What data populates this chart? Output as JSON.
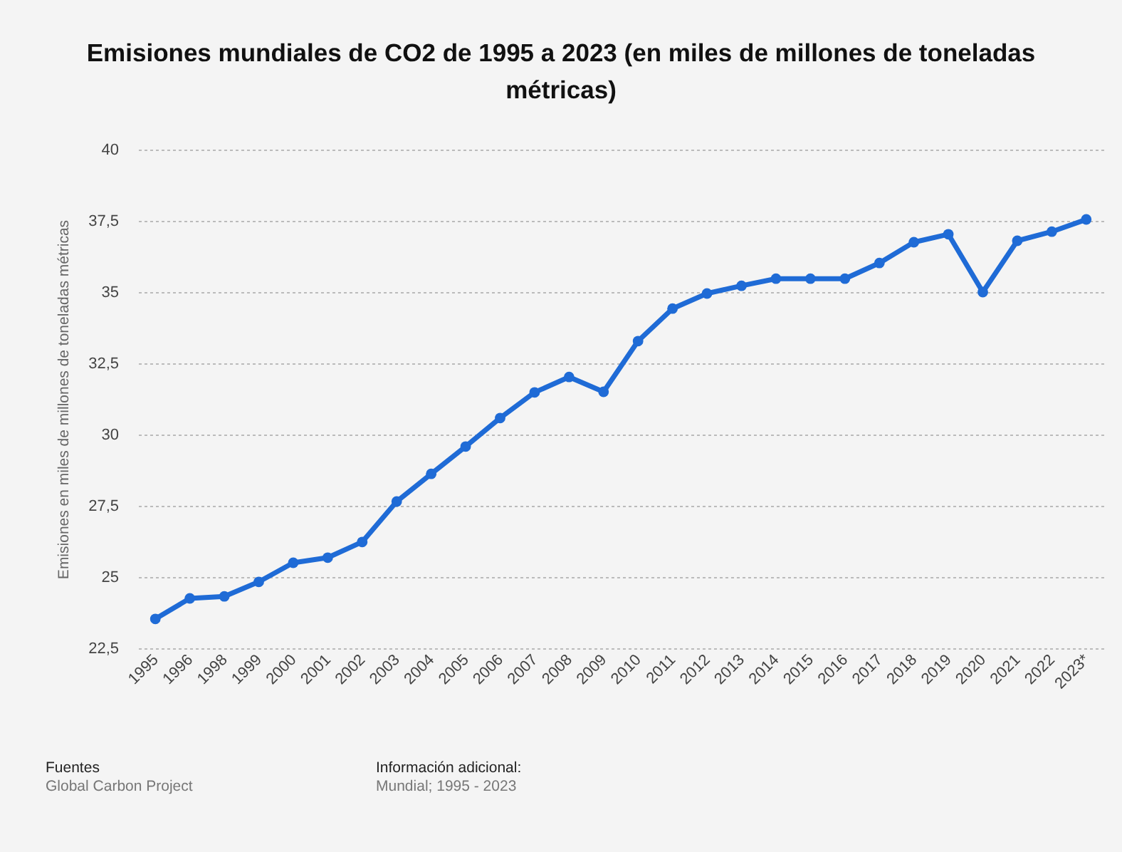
{
  "chart_data": {
    "type": "line",
    "title": "Emisiones mundiales de CO2 de 1995 a 2023 (en miles de millones de toneladas métricas)",
    "ylabel": "Emisiones en miles de millones de toneladas métricas",
    "categories": [
      "1995",
      "1996",
      "1998",
      "1999",
      "2000",
      "2001",
      "2002",
      "2003",
      "2004",
      "2005",
      "2006",
      "2007",
      "2008",
      "2009",
      "2010",
      "2011",
      "2012",
      "2013",
      "2014",
      "2015",
      "2016",
      "2017",
      "2018",
      "2019",
      "2020",
      "2021",
      "2022",
      "2023*"
    ],
    "series": [
      {
        "color": "#1f6bd6",
        "values": [
          23.53,
          24.25,
          24.32,
          24.83,
          25.5,
          25.68,
          26.23,
          27.65,
          28.62,
          29.58,
          30.58,
          31.48,
          32.02,
          31.5,
          33.28,
          34.42,
          34.95,
          35.22,
          35.47,
          35.47,
          35.47,
          36.02,
          36.75,
          37.03,
          35.0,
          36.8,
          37.12,
          37.55
        ]
      }
    ],
    "ylim": [
      22.5,
      40
    ],
    "yticks": [
      {
        "value": 22.5,
        "label": "22,5"
      },
      25,
      {
        "value": 27.5,
        "label": "27,5"
      },
      30,
      {
        "value": 32.5,
        "label": "32,5"
      },
      35,
      {
        "value": 37.5,
        "label": "37,5"
      },
      40
    ],
    "grid": "y",
    "marker": "circle",
    "line_style": "solid",
    "annotations": [
      "Fuentes",
      "Global Carbon Project",
      "Información adicional:",
      "Mundial; 1995 - 2023"
    ]
  }
}
